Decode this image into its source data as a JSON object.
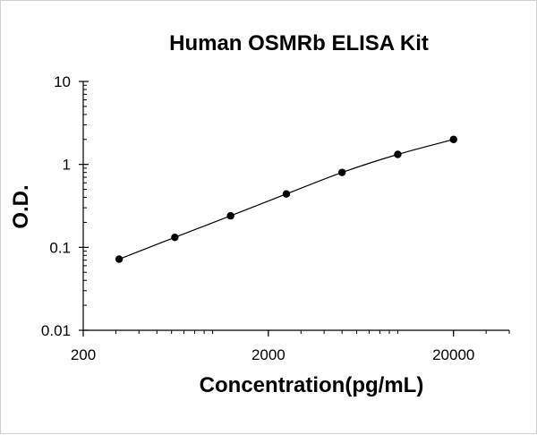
{
  "chart_data": {
    "type": "scatter",
    "title": "Human OSMRb ELISA Kit",
    "xlabel": "Concentration(pg/mL)",
    "ylabel": "O.D.",
    "xscale": "log",
    "yscale": "log",
    "xlim": [
      200,
      40000
    ],
    "ylim": [
      0.01,
      10
    ],
    "xticks": [
      {
        "value": 200,
        "label": "200"
      },
      {
        "value": 2000,
        "label": "2000"
      },
      {
        "value": 20000,
        "label": "20000"
      }
    ],
    "yticks": [
      {
        "value": 10,
        "label": "10"
      },
      {
        "value": 1,
        "label": "1"
      },
      {
        "value": 0.1,
        "label": "0.1"
      },
      {
        "value": 0.01,
        "label": "0.01"
      }
    ],
    "grid": false,
    "legend": "none",
    "series": [
      {
        "x": [
          312.5,
          625,
          1250,
          2500,
          5000,
          10000,
          20000
        ],
        "y": [
          0.072,
          0.132,
          0.24,
          0.44,
          0.8,
          1.32,
          2.0
        ]
      }
    ],
    "colors": {
      "line": "#000000",
      "marker": "#000000",
      "axis": "#000000"
    }
  }
}
